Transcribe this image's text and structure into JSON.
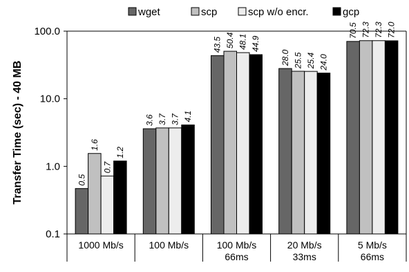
{
  "chart_data": {
    "type": "bar",
    "ylabel": "Transfer Time (sec) - 40 MB",
    "yscale": "log",
    "ylim": [
      0.1,
      100
    ],
    "yticks": [
      "0.1",
      "1.0",
      "10.0",
      "100.0"
    ],
    "categories": [
      [
        "1000 Mb/s"
      ],
      [
        "100 Mb/s"
      ],
      [
        "100 Mb/s",
        "66ms"
      ],
      [
        "20 Mb/s",
        "33ms"
      ],
      [
        "5 Mb/s",
        "66ms"
      ]
    ],
    "legend_position": "top",
    "series": [
      {
        "name": "wget",
        "color": "#666666",
        "values": [
          0.47,
          3.6,
          43.5,
          28.0,
          70.5
        ],
        "labels": [
          "0.5",
          "3.6",
          "43.5",
          "28.0",
          "70.5"
        ]
      },
      {
        "name": "scp",
        "color": "#c0c0c0",
        "values": [
          1.55,
          3.7,
          50.4,
          25.5,
          72.3
        ],
        "labels": [
          "1.6",
          "3.7",
          "50.4",
          "25.5",
          "72.3"
        ]
      },
      {
        "name": "scp w/o encr.",
        "color": "#ededed",
        "values": [
          0.72,
          3.7,
          48.1,
          25.4,
          72.3
        ],
        "labels": [
          "0.7",
          "3.7",
          "48.1",
          "25.4",
          "72.3"
        ]
      },
      {
        "name": "gcp",
        "color": "#000000",
        "values": [
          1.2,
          4.1,
          44.9,
          24.0,
          72.0
        ],
        "labels": [
          "1.2",
          "4.1",
          "44.9",
          "24.0",
          "72.0"
        ]
      }
    ],
    "grid": false
  }
}
